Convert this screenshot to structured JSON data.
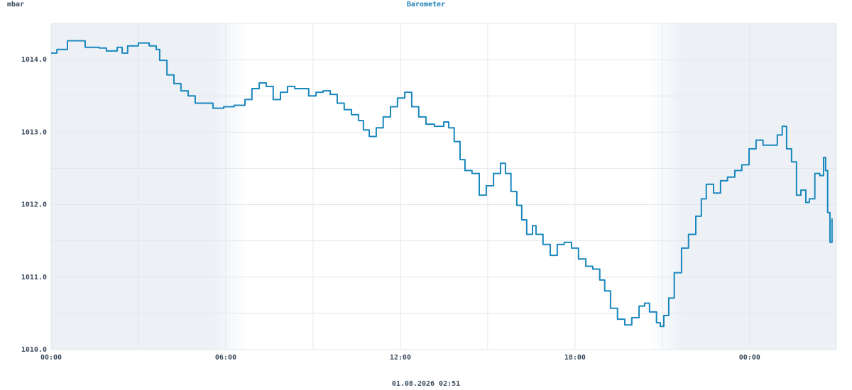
{
  "chart_data": {
    "type": "line",
    "title": "Barometer",
    "y_label": "mbar",
    "footer": "01.08.2026 02:51",
    "color": "#1a87bd",
    "grid": true,
    "xlim": [
      0,
      26.98
    ],
    "ylim": [
      1010,
      1014.5
    ],
    "xticks": [
      {
        "value": 0,
        "label": "00:00"
      },
      {
        "value": 6,
        "label": "06:00"
      },
      {
        "value": 12,
        "label": "12:00"
      },
      {
        "value": 18,
        "label": "18:00"
      },
      {
        "value": 24,
        "label": "00:00"
      }
    ],
    "minor_xticks": [
      3,
      9,
      15,
      21
    ],
    "yticks": [
      {
        "value": 1010,
        "label": "1010.0"
      },
      {
        "value": 1011,
        "label": "1011.0"
      },
      {
        "value": 1012,
        "label": "1012.0"
      },
      {
        "value": 1013,
        "label": "1013.0"
      },
      {
        "value": 1014,
        "label": "1014.0"
      }
    ],
    "minor_yticks": [
      1010.5,
      1011.5,
      1012.5,
      1013.5
    ],
    "x": [
      0,
      0.2,
      0.56,
      0.93,
      1.17,
      1.66,
      1.9,
      2.27,
      2.44,
      2.63,
      3.0,
      3.37,
      3.61,
      3.73,
      3.98,
      4.22,
      4.46,
      4.71,
      4.95,
      5.32,
      5.56,
      5.93,
      6.29,
      6.54,
      6.66,
      6.9,
      7.15,
      7.39,
      7.63,
      7.88,
      8.12,
      8.37,
      8.61,
      8.85,
      9.1,
      9.34,
      9.59,
      9.83,
      10.07,
      10.32,
      10.56,
      10.73,
      10.93,
      11.17,
      11.41,
      11.66,
      11.9,
      12.15,
      12.39,
      12.63,
      12.88,
      13.17,
      13.49,
      13.66,
      13.85,
      14.05,
      14.22,
      14.46,
      14.71,
      14.95,
      15.2,
      15.44,
      15.61,
      15.8,
      16.0,
      16.17,
      16.34,
      16.54,
      16.66,
      16.9,
      17.15,
      17.39,
      17.63,
      17.88,
      18.12,
      18.37,
      18.61,
      18.85,
      19.02,
      19.22,
      19.46,
      19.71,
      19.95,
      20.2,
      20.39,
      20.56,
      20.8,
      20.93,
      21.05,
      21.22,
      21.41,
      21.66,
      21.9,
      22.15,
      22.34,
      22.51,
      22.76,
      23.0,
      23.24,
      23.49,
      23.73,
      23.98,
      24.22,
      24.46,
      24.71,
      24.95,
      25.12,
      25.27,
      25.44,
      25.61,
      25.76,
      25.93,
      26.05,
      26.24,
      26.41,
      26.54,
      26.61,
      26.68,
      26.76,
      26.83
    ],
    "values": [
      1014.09,
      1014.14,
      1014.26,
      1014.26,
      1014.17,
      1014.16,
      1014.12,
      1014.17,
      1014.09,
      1014.19,
      1014.23,
      1014.19,
      1014.14,
      1013.99,
      1013.79,
      1013.67,
      1013.57,
      1013.5,
      1013.4,
      1013.4,
      1013.33,
      1013.35,
      1013.37,
      1013.37,
      1013.45,
      1013.6,
      1013.68,
      1013.63,
      1013.45,
      1013.55,
      1013.63,
      1013.6,
      1013.6,
      1013.5,
      1013.55,
      1013.57,
      1013.52,
      1013.4,
      1013.31,
      1013.24,
      1013.16,
      1013.03,
      1012.94,
      1013.06,
      1013.21,
      1013.35,
      1013.47,
      1013.55,
      1013.35,
      1013.21,
      1013.11,
      1013.08,
      1013.14,
      1013.06,
      1012.87,
      1012.62,
      1012.47,
      1012.43,
      1012.13,
      1012.26,
      1012.43,
      1012.57,
      1012.43,
      1012.18,
      1011.99,
      1011.79,
      1011.59,
      1011.71,
      1011.59,
      1011.45,
      1011.3,
      1011.45,
      1011.48,
      1011.4,
      1011.25,
      1011.15,
      1011.11,
      1010.96,
      1010.81,
      1010.57,
      1010.42,
      1010.34,
      1010.44,
      1010.6,
      1010.64,
      1010.52,
      1010.37,
      1010.32,
      1010.47,
      1010.71,
      1011.06,
      1011.4,
      1011.59,
      1011.84,
      1012.08,
      1012.28,
      1012.16,
      1012.33,
      1012.38,
      1012.47,
      1012.55,
      1012.77,
      1012.89,
      1012.82,
      1012.82,
      1012.96,
      1013.08,
      1012.77,
      1012.59,
      1012.13,
      1012.2,
      1012.03,
      1012.08,
      1012.43,
      1012.4,
      1012.65,
      1012.47,
      1011.89,
      1011.48,
      1011.81
    ]
  }
}
